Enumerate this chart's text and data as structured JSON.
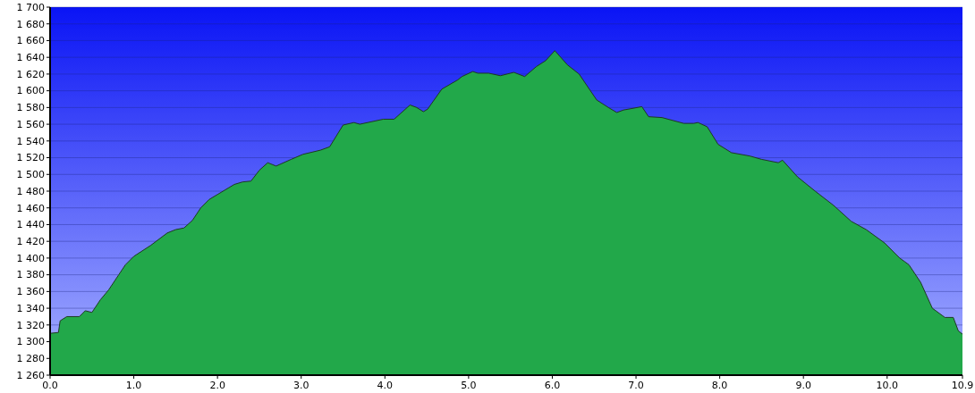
{
  "chart_data": {
    "type": "area",
    "color": "#22a84a",
    "grid": "y",
    "x": [
      0,
      0.1,
      0.12,
      0.2,
      0.35,
      0.42,
      0.5,
      0.6,
      0.7,
      0.82,
      0.9,
      1.0,
      1.2,
      1.4,
      1.5,
      1.6,
      1.7,
      1.8,
      1.9,
      2.0,
      2.2,
      2.3,
      2.4,
      2.5,
      2.6,
      2.7,
      2.88,
      3.02,
      3.23,
      3.34,
      3.5,
      3.63,
      3.7,
      3.98,
      4.11,
      4.3,
      4.38,
      4.46,
      4.51,
      4.68,
      4.87,
      4.92,
      5.05,
      5.11,
      5.24,
      5.38,
      5.54,
      5.67,
      5.81,
      5.92,
      6.03,
      6.18,
      6.32,
      6.53,
      6.67,
      6.77,
      6.85,
      7.07,
      7.15,
      7.31,
      7.57,
      7.69,
      7.74,
      7.85,
      7.98,
      8.14,
      8.36,
      8.5,
      8.7,
      8.75,
      8.93,
      9.14,
      9.36,
      9.57,
      9.75,
      9.97,
      10.15,
      10.26,
      10.4,
      10.54,
      10.69,
      10.79,
      10.85,
      10.9
    ],
    "values": [
      1310,
      1311,
      1325,
      1330,
      1330,
      1337,
      1335,
      1350,
      1362,
      1380,
      1392,
      1402,
      1415,
      1430,
      1434,
      1436,
      1445,
      1460,
      1470,
      1476,
      1488,
      1491,
      1492,
      1505,
      1514,
      1510,
      1518,
      1524,
      1529,
      1533,
      1559,
      1562,
      1560,
      1566,
      1566,
      1583,
      1580,
      1575,
      1578,
      1602,
      1613,
      1617,
      1623,
      1621,
      1621,
      1618,
      1622,
      1617,
      1629,
      1636,
      1648,
      1631,
      1620,
      1589,
      1580,
      1574,
      1577,
      1581,
      1569,
      1568,
      1561,
      1561,
      1562,
      1557,
      1536,
      1526,
      1522,
      1518,
      1514,
      1517,
      1497,
      1480,
      1463,
      1444,
      1434,
      1418,
      1400,
      1392,
      1371,
      1340,
      1329,
      1329,
      1313,
      1309
    ],
    "xlim": [
      0,
      10.9
    ],
    "xticks": [
      {
        "value": 0,
        "label": "0.0"
      },
      {
        "value": 1,
        "label": "1.0"
      },
      {
        "value": 2,
        "label": "2.0"
      },
      {
        "value": 3,
        "label": "3.0"
      },
      {
        "value": 4,
        "label": "4.0"
      },
      {
        "value": 5,
        "label": "5.0"
      },
      {
        "value": 6,
        "label": "6.0"
      },
      {
        "value": 7,
        "label": "7.0"
      },
      {
        "value": 8,
        "label": "8.0"
      },
      {
        "value": 9,
        "label": "9.0"
      },
      {
        "value": 10,
        "label": "10.0"
      },
      {
        "value": 10.9,
        "label": "10.9"
      }
    ],
    "ylim": [
      1260,
      1700
    ],
    "yticks": [
      {
        "value": 1260,
        "label": "1 260"
      },
      {
        "value": 1280,
        "label": "1 280"
      },
      {
        "value": 1300,
        "label": "1 300"
      },
      {
        "value": 1320,
        "label": "1 320"
      },
      {
        "value": 1340,
        "label": "1 340"
      },
      {
        "value": 1360,
        "label": "1 360"
      },
      {
        "value": 1380,
        "label": "1 380"
      },
      {
        "value": 1400,
        "label": "1 400"
      },
      {
        "value": 1420,
        "label": "1 420"
      },
      {
        "value": 1440,
        "label": "1 440"
      },
      {
        "value": 1460,
        "label": "1 460"
      },
      {
        "value": 1480,
        "label": "1 480"
      },
      {
        "value": 1500,
        "label": "1 500"
      },
      {
        "value": 1520,
        "label": "1 520"
      },
      {
        "value": 1540,
        "label": "1 540"
      },
      {
        "value": 1560,
        "label": "1 560"
      },
      {
        "value": 1580,
        "label": "1 580"
      },
      {
        "value": 1600,
        "label": "1 600"
      },
      {
        "value": 1620,
        "label": "1 620"
      },
      {
        "value": 1640,
        "label": "1 640"
      },
      {
        "value": 1660,
        "label": "1 660"
      },
      {
        "value": 1680,
        "label": "1 680"
      },
      {
        "value": 1700,
        "label": "1 700"
      }
    ]
  }
}
